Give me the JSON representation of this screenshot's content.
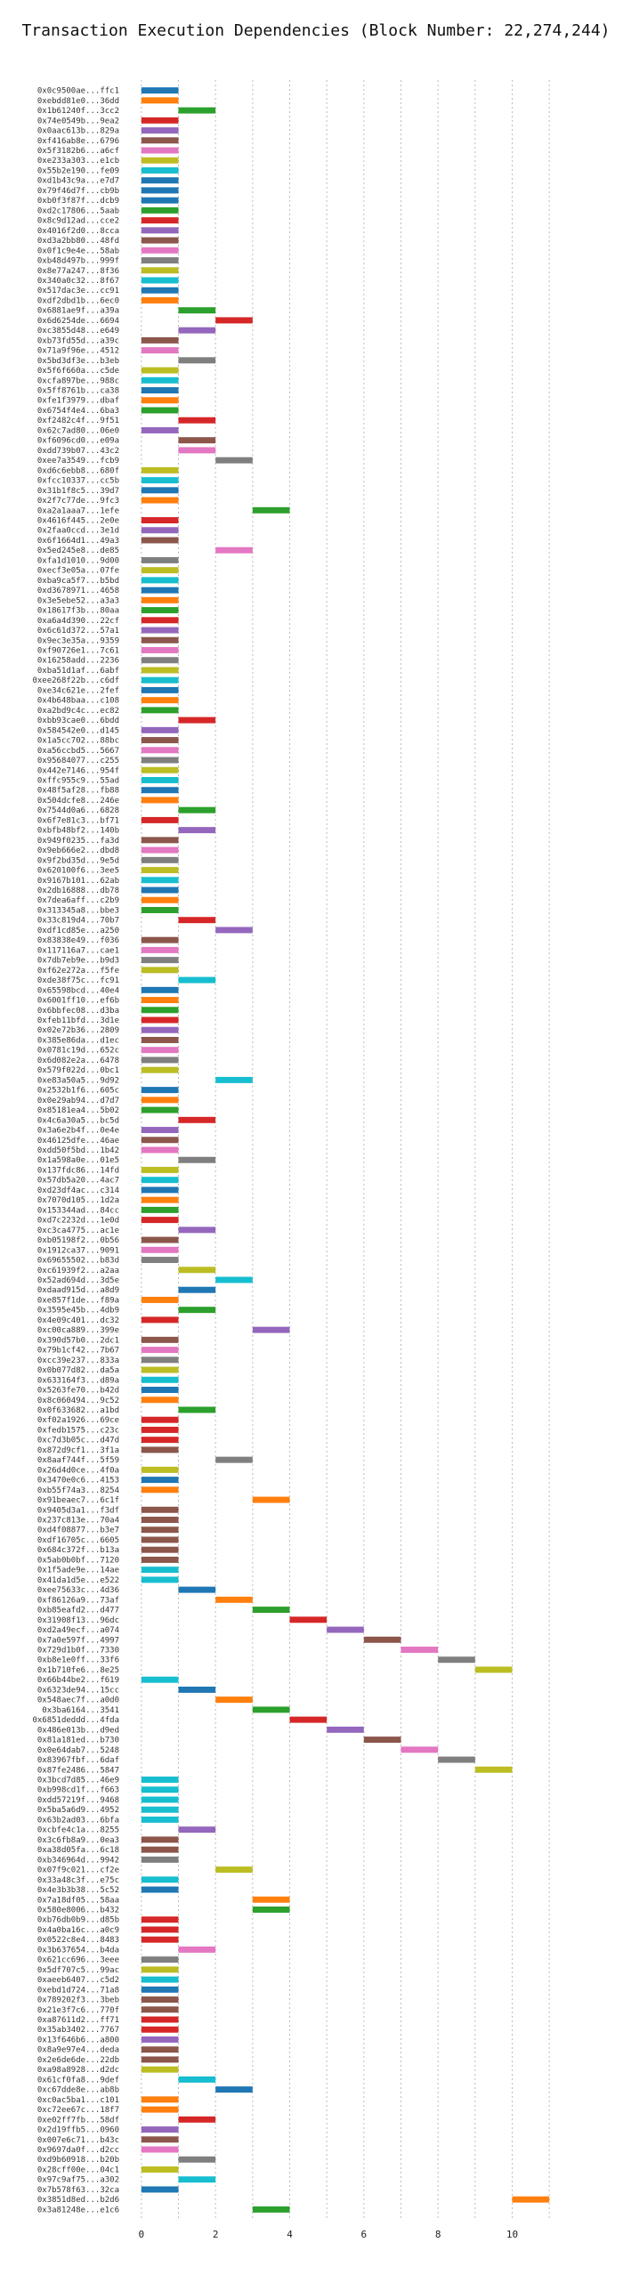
{
  "chart_data": {
    "type": "gantt",
    "title": "Transaction Execution Dependencies (Block Number: 22,274,244)",
    "xlabel": "",
    "ylabel": "",
    "xlim": [
      -0.5,
      11.5
    ],
    "xticks": [
      0,
      2,
      4,
      6,
      8,
      10
    ],
    "grid": "vertical dotted at integer x",
    "legend": "none",
    "bar_width": 1,
    "palette": [
      "#1f77b4",
      "#ff7f0e",
      "#2ca02c",
      "#d62728",
      "#9467bd",
      "#8c564b",
      "#e377c2",
      "#7f7f7f",
      "#bcbd22",
      "#17becf"
    ],
    "tasks": [
      [
        "0x0c9500ae...ffc1",
        0,
        0
      ],
      [
        "0xebdd81e0...36dd",
        0,
        1
      ],
      [
        "0x1b61240f...3cc2",
        1,
        2
      ],
      [
        "0x74e0549b...9ea2",
        0,
        3
      ],
      [
        "0x0aac613b...829a",
        0,
        4
      ],
      [
        "0xf416ab8e...6796",
        0,
        5
      ],
      [
        "0x5f3182b6...a6cf",
        0,
        6
      ],
      [
        "0xe233a303...e1cb",
        0,
        8
      ],
      [
        "0x55b2e190...fe09",
        0,
        9
      ],
      [
        "0xd1b43c9a...e7d7",
        0,
        0
      ],
      [
        "0x79f46d7f...cb9b",
        0,
        0
      ],
      [
        "0xb0f3f87f...dcb9",
        0,
        0
      ],
      [
        "0xd2c17806...5aab",
        0,
        2
      ],
      [
        "0x8c9d12ad...cce2",
        0,
        3
      ],
      [
        "0x4016f2d0...8cca",
        0,
        4
      ],
      [
        "0xd3a2bb80...48fd",
        0,
        5
      ],
      [
        "0x0f1c9e4e...58ab",
        0,
        6
      ],
      [
        "0xb48d497b...999f",
        0,
        7
      ],
      [
        "0x8e77a247...8f36",
        0,
        8
      ],
      [
        "0x340a0c32...8f67",
        0,
        9
      ],
      [
        "0x517dac3e...cc91",
        0,
        0
      ],
      [
        "0xdf2dbd1b...6ec0",
        0,
        1
      ],
      [
        "0x6881ae9f...a39a",
        1,
        2
      ],
      [
        "0x6d6254de...6694",
        2,
        3
      ],
      [
        "0xc3855d48...e649",
        1,
        4
      ],
      [
        "0xb73fd55d...a39c",
        0,
        5
      ],
      [
        "0x71a9f96e...4512",
        0,
        6
      ],
      [
        "0x5bd3df3e...b3eb",
        1,
        7
      ],
      [
        "0x5f6f660a...c5de",
        0,
        8
      ],
      [
        "0xcfa897be...988c",
        0,
        9
      ],
      [
        "0x5ff8761b...ca38",
        0,
        0
      ],
      [
        "0xfe1f3979...dbaf",
        0,
        1
      ],
      [
        "0x6754f4e4...6ba3",
        0,
        2
      ],
      [
        "0xf2482c4f...9f51",
        1,
        3
      ],
      [
        "0x62c7ad80...06e0",
        0,
        4
      ],
      [
        "0xf6096cd0...e09a",
        1,
        5
      ],
      [
        "0xdd739b07...43c2",
        1,
        6
      ],
      [
        "0xee7a3549...fcb9",
        2,
        7
      ],
      [
        "0xd6c6ebb8...680f",
        0,
        8
      ],
      [
        "0xfcc10337...cc5b",
        0,
        9
      ],
      [
        "0x31b1f8c5...39d7",
        0,
        0
      ],
      [
        "0x2f7c77de...9fc3",
        0,
        1
      ],
      [
        "0xa2a1aaa7...1efe",
        3,
        2
      ],
      [
        "0x4616f445...2e0e",
        0,
        3
      ],
      [
        "0x2faa0ccd...3e1d",
        0,
        4
      ],
      [
        "0x6f1664d1...49a3",
        0,
        5
      ],
      [
        "0x5ed245e8...de85",
        2,
        6
      ],
      [
        "0xfa1d1010...9d00",
        0,
        7
      ],
      [
        "0xecf3e05a...07fe",
        0,
        8
      ],
      [
        "0xba9ca5f7...b5bd",
        0,
        9
      ],
      [
        "0xd3678971...4658",
        0,
        0
      ],
      [
        "0x3e5ebe52...a3a3",
        0,
        1
      ],
      [
        "0x18617f3b...80aa",
        0,
        2
      ],
      [
        "0xa6a4d390...22cf",
        0,
        3
      ],
      [
        "0x6c61d372...57a1",
        0,
        4
      ],
      [
        "0x9ec3e35a...9359",
        0,
        5
      ],
      [
        "0xf90726e1...7c61",
        0,
        6
      ],
      [
        "0x16258add...2236",
        0,
        7
      ],
      [
        "0xba51d1af...6abf",
        0,
        8
      ],
      [
        "0xee268f22b...c6df",
        0,
        9
      ],
      [
        "0xe34c621e...2fef",
        0,
        0
      ],
      [
        "0x4b648baa...c108",
        0,
        1
      ],
      [
        "0xa2bd9c4c...ec82",
        0,
        2
      ],
      [
        "0xbb93cae0...6bdd",
        1,
        3
      ],
      [
        "0x584542e0...d145",
        0,
        4
      ],
      [
        "0x1a5cc702...88bc",
        0,
        5
      ],
      [
        "0xa56ccbd5...5667",
        0,
        6
      ],
      [
        "0x95684077...c255",
        0,
        7
      ],
      [
        "0x442e7146...954f",
        0,
        8
      ],
      [
        "0xffc955c9...55ad",
        0,
        9
      ],
      [
        "0x48f5af28...fb88",
        0,
        0
      ],
      [
        "0x504dcfe8...246e",
        0,
        1
      ],
      [
        "0x7544d0a6...6828",
        1,
        2
      ],
      [
        "0x6f7e81c3...bf71",
        0,
        3
      ],
      [
        "0xbfb48bf2...140b",
        1,
        4
      ],
      [
        "0x949f0235...fa3d",
        0,
        5
      ],
      [
        "0x9eb666e2...dbd8",
        0,
        6
      ],
      [
        "0x9f2bd35d...9e5d",
        0,
        7
      ],
      [
        "0x620100f6...3ee5",
        0,
        8
      ],
      [
        "0x9167b101...62ab",
        0,
        9
      ],
      [
        "0x2db16888...db78",
        0,
        0
      ],
      [
        "0x7dea6aff...c2b9",
        0,
        1
      ],
      [
        "0x313345a8...bbe3",
        0,
        2
      ],
      [
        "0x33c819d4...70b7",
        1,
        3
      ],
      [
        "0xdf1cd85e...a250",
        2,
        4
      ],
      [
        "0x83838e49...f036",
        0,
        5
      ],
      [
        "0x117116a7...cae1",
        0,
        6
      ],
      [
        "0x7db7eb9e...b9d3",
        0,
        7
      ],
      [
        "0xf62e272a...f5fe",
        0,
        8
      ],
      [
        "0xde38f75c...fc91",
        1,
        9
      ],
      [
        "0x65598bcd...40e4",
        0,
        0
      ],
      [
        "0x6001ff10...ef6b",
        0,
        1
      ],
      [
        "0x6bbfec08...d3ba",
        0,
        2
      ],
      [
        "0xfeb11bfd...3d1e",
        0,
        3
      ],
      [
        "0x02e72b36...2809",
        0,
        4
      ],
      [
        "0x385e86da...d1ec",
        0,
        5
      ],
      [
        "0x0781c19d...652c",
        0,
        6
      ],
      [
        "0x6d082e2a...6478",
        0,
        7
      ],
      [
        "0x579f022d...0bc1",
        0,
        8
      ],
      [
        "0xe83a50a5...9d92",
        2,
        9
      ],
      [
        "0x2532b1f6...605c",
        0,
        0
      ],
      [
        "0x0e29ab94...d7d7",
        0,
        1
      ],
      [
        "0x85181ea4...5b02",
        0,
        2
      ],
      [
        "0x4c6a30a5...bc5d",
        1,
        3
      ],
      [
        "0x3a6e2b4f...0e4e",
        0,
        4
      ],
      [
        "0x46125dfe...46ae",
        0,
        5
      ],
      [
        "0xdd50f5bd...1b42",
        0,
        6
      ],
      [
        "0x1a598a0e...01e5",
        1,
        7
      ],
      [
        "0x137fdc86...14fd",
        0,
        8
      ],
      [
        "0x57db5a20...4ac7",
        0,
        9
      ],
      [
        "0xd23df4ac...c314",
        0,
        0
      ],
      [
        "0x7070d105...1d2a",
        0,
        1
      ],
      [
        "0x153344ad...84cc",
        0,
        2
      ],
      [
        "0xd7c2232d...1e0d",
        0,
        3
      ],
      [
        "0xc3ca4775...ac1e",
        1,
        4
      ],
      [
        "0xb05198f2...0b56",
        0,
        5
      ],
      [
        "0x1912ca37...9091",
        0,
        6
      ],
      [
        "0x69655502...b83d",
        0,
        7
      ],
      [
        "0xc61939f2...a2aa",
        1,
        8
      ],
      [
        "0x52ad694d...3d5e",
        2,
        9
      ],
      [
        "0xdaad915d...a8d9",
        1,
        0
      ],
      [
        "0xe857f1de...f89a",
        0,
        1
      ],
      [
        "0x3595e45b...4db9",
        1,
        2
      ],
      [
        "0x4e09c401...dc32",
        0,
        3
      ],
      [
        "0xc00ca889...399e",
        3,
        4
      ],
      [
        "0x390d57b0...2dc1",
        0,
        5
      ],
      [
        "0x79b1cf42...7b67",
        0,
        6
      ],
      [
        "0xcc39e237...833a",
        0,
        7
      ],
      [
        "0x0b077d82...da5a",
        0,
        8
      ],
      [
        "0x633164f3...d89a",
        0,
        9
      ],
      [
        "0x5263fe70...b42d",
        0,
        0
      ],
      [
        "0x8c060494...9c52",
        0,
        1
      ],
      [
        "0x0f633682...a1bd",
        1,
        2
      ],
      [
        "0xf02a1926...69ce",
        0,
        3
      ],
      [
        "0xfedb1575...c23c",
        0,
        3
      ],
      [
        "0xc7d3b05c...d47d",
        0,
        3
      ],
      [
        "0x872d9cf1...3f1a",
        0,
        5
      ],
      [
        "0x8aaf744f...5f59",
        2,
        7
      ],
      [
        "0x26d4d0ce...4f0a",
        0,
        8
      ],
      [
        "0x3470e0c6...4153",
        0,
        0
      ],
      [
        "0xb55f74a3...8254",
        0,
        1
      ],
      [
        "0x91beaec7...6c1f",
        3,
        1
      ],
      [
        "0x9405d3a1...f3df",
        0,
        5
      ],
      [
        "0x237c813e...70a4",
        0,
        5
      ],
      [
        "0xd4f08877...b3e7",
        0,
        5
      ],
      [
        "0xdf16705c...6605",
        0,
        5
      ],
      [
        "0x684c372f...b13a",
        0,
        5
      ],
      [
        "0x5ab0b0bf...7120",
        0,
        5
      ],
      [
        "0x1f5ade9e...14ae",
        0,
        9
      ],
      [
        "0x41da1d5e...e522",
        0,
        9
      ],
      [
        "0xee75633c...4d36",
        1,
        0
      ],
      [
        "0xf86126a9...73af",
        2,
        1
      ],
      [
        "0xb85eafd2...d477",
        3,
        2
      ],
      [
        "0x31908f13...96dc",
        4,
        3
      ],
      [
        "0xd2a49ecf...a074",
        5,
        4
      ],
      [
        "0x7a0e597f...4997",
        6,
        5
      ],
      [
        "0x729d1b0f...7330",
        7,
        6
      ],
      [
        "0xb8e1e0ff...33f6",
        8,
        7
      ],
      [
        "0x1b710fe6...8e25",
        9,
        8
      ],
      [
        "0x66b44be2...f619",
        0,
        9
      ],
      [
        "0x6323de94...15cc",
        1,
        0
      ],
      [
        "0x548aec7f...a0d0",
        2,
        1
      ],
      [
        "0x3ba6164...3541",
        3,
        2
      ],
      [
        "0x6851deddd...4fda",
        4,
        3
      ],
      [
        "0x486e013b...d9ed",
        5,
        4
      ],
      [
        "0x81a181ed...b730",
        6,
        5
      ],
      [
        "0x0e64dab7...5248",
        7,
        6
      ],
      [
        "0x83967fbf...6daf",
        8,
        7
      ],
      [
        "0x87fe2486...5847",
        9,
        8
      ],
      [
        "0x3bcd7d85...46e9",
        0,
        9
      ],
      [
        "0xb998cd1f...f663",
        0,
        9
      ],
      [
        "0xdd57219f...9468",
        0,
        9
      ],
      [
        "0x5ba5a6d9...4952",
        0,
        9
      ],
      [
        "0x63b2ad03...6bfa",
        0,
        9
      ],
      [
        "0xcbfe4c1a...8255",
        1,
        4
      ],
      [
        "0x3c6fb8a9...0ea3",
        0,
        5
      ],
      [
        "0xa38d05fa...6c18",
        0,
        5
      ],
      [
        "0xb346964d...9942",
        0,
        7
      ],
      [
        "0x07f9c021...cf2e",
        2,
        8
      ],
      [
        "0x33a48c3f...e75c",
        0,
        9
      ],
      [
        "0x4e3b3b38...5c52",
        0,
        0
      ],
      [
        "0x7a18df05...58aa",
        3,
        1
      ],
      [
        "0x580e8006...b432",
        3,
        2
      ],
      [
        "0xb76db0b9...d85b",
        0,
        3
      ],
      [
        "0x4a0ba16c...a0c9",
        0,
        3
      ],
      [
        "0x0522c8e4...8483",
        0,
        3
      ],
      [
        "0x3b637654...b4da",
        1,
        6
      ],
      [
        "0x621cc696...3eee",
        0,
        7
      ],
      [
        "0x5df707c5...99ac",
        0,
        8
      ],
      [
        "0xaeeb6407...c5d2",
        0,
        9
      ],
      [
        "0xebd1d724...71a8",
        0,
        0
      ],
      [
        "0x789202f3...3beb",
        0,
        5
      ],
      [
        "0x21e3f7c6...770f",
        0,
        5
      ],
      [
        "0xa87611d2...ff71",
        0,
        3
      ],
      [
        "0x35ab3402...7767",
        0,
        3
      ],
      [
        "0x13f646b6...a800",
        0,
        4
      ],
      [
        "0x8a9e97e4...deda",
        0,
        5
      ],
      [
        "0x2e6de6de...22db",
        0,
        5
      ],
      [
        "0xa98a8928...d2dc",
        0,
        8
      ],
      [
        "0x61cf0fa8...9def",
        1,
        9
      ],
      [
        "0xc67dde8e...ab8b",
        2,
        0
      ],
      [
        "0xc0ac5ba1...c101",
        0,
        1
      ],
      [
        "0xc72ee67c...18f7",
        0,
        1
      ],
      [
        "0xe02ff7fb...58df",
        1,
        3
      ],
      [
        "0x2d19ffb5...0960",
        0,
        4
      ],
      [
        "0x007e6c71...b43c",
        0,
        5
      ],
      [
        "0x9697da0f...d2cc",
        0,
        6
      ],
      [
        "0xd9b60918...b20b",
        1,
        7
      ],
      [
        "0x28cff00e...04c1",
        0,
        8
      ],
      [
        "0x97c9af75...a302",
        1,
        9
      ],
      [
        "0x7b578f63...32ca",
        0,
        0
      ],
      [
        "0x3851d8ed...b2d6",
        10,
        1
      ],
      [
        "0x3a81248e...e1c6",
        3,
        2
      ]
    ]
  }
}
